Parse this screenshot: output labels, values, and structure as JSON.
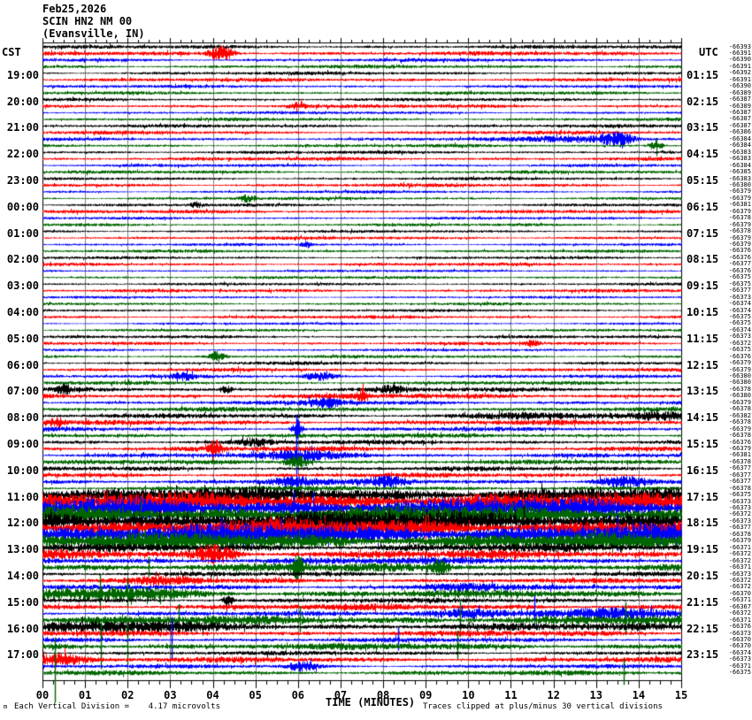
{
  "header": {
    "date": "Feb25,2026",
    "station": "SCIN HN2 NM 00",
    "location": "(Evansville, IN)"
  },
  "footer": {
    "unit_glyph": "m",
    "division_note": "Each Vertical Division =    4.17 microvolts",
    "clip_note": "Traces clipped at plus/minus 30 vertical divisions"
  },
  "chart_data": {
    "type": "line",
    "subtype": "helicorder-seismogram",
    "title": "Feb25,2026 SCIN HN2 NM 00 (Evansville, IN)",
    "xlabel": "TIME (MINUTES)",
    "x_range_minutes": [
      0,
      15
    ],
    "x_tick_labels": [
      "00",
      "01",
      "02",
      "03",
      "04",
      "05",
      "06",
      "07",
      "08",
      "09",
      "10",
      "11",
      "12",
      "13",
      "14",
      "15"
    ],
    "minor_ticks_per_minute": 4,
    "rows": 96,
    "row_duration_minutes": 15,
    "grid_color": "#808080",
    "trace_colors_cycle": [
      "#000000",
      "#ff0000",
      "#0000ff",
      "#006600"
    ],
    "left_axis": {
      "label": "CST",
      "hours": [
        "19:00",
        "20:00",
        "21:00",
        "22:00",
        "23:00",
        "00:00",
        "01:00",
        "02:00",
        "03:00",
        "04:00",
        "05:00",
        "06:00",
        "07:00",
        "08:00",
        "09:00",
        "10:00",
        "11:00",
        "12:00",
        "13:00",
        "14:00",
        "15:00",
        "16:00",
        "17:00"
      ]
    },
    "right_axis": {
      "label": "UTC",
      "hours": [
        "01:15",
        "02:15",
        "03:15",
        "04:15",
        "05:15",
        "06:15",
        "07:15",
        "08:15",
        "09:15",
        "10:15",
        "11:15",
        "12:15",
        "13:15",
        "14:15",
        "15:15",
        "16:15",
        "17:15",
        "18:15",
        "19:15",
        "20:15",
        "21:15",
        "22:15",
        "23:15"
      ]
    },
    "trace_right_values": [
      -66393,
      -66391,
      -66390,
      -66391,
      -66392,
      -66391,
      -66390,
      -66389,
      -66387,
      -66389,
      -66387,
      -66387,
      -66387,
      -66386,
      -66384,
      -66384,
      -66383,
      -66383,
      -66384,
      -66385,
      -66383,
      -66380,
      -66379,
      -66379,
      -66381,
      -66379,
      -66378,
      -66379,
      -66378,
      -66379,
      -66379,
      -66376,
      -66376,
      -66377,
      -66376,
      -66375,
      -66375,
      -66377,
      -66373,
      -66374,
      -66374,
      -66375,
      -66375,
      -66374,
      -66373,
      -66372,
      -66375,
      -66376,
      -66379,
      -66379,
      -66380,
      -66380,
      -66378,
      -66380,
      -66379,
      -66378,
      -66382,
      -66378,
      -66379,
      -66378,
      -66376,
      -66379,
      -66381,
      -66378,
      -66377,
      -66377,
      -66377,
      -66378,
      -66375,
      -66373,
      -66373,
      -66372,
      -66373,
      -66377,
      -66378,
      -66379,
      -66371,
      -66372,
      -66372,
      -66371,
      -66373,
      -66372,
      -66372,
      -66370,
      -66371,
      -66367,
      -66372,
      -66371,
      -66376,
      -66373,
      -66370,
      -66370,
      -66374,
      -66373,
      -66371,
      -66375
    ],
    "traces": [
      {
        "a": 1.3,
        "e": []
      },
      {
        "a": 1.5,
        "e": [
          [
            4.2,
            0.2,
            7,
            0
          ]
        ]
      },
      {
        "a": 1.3,
        "e": []
      },
      {
        "a": 1.3,
        "e": []
      },
      {
        "a": 1.2,
        "e": []
      },
      {
        "a": 1.4,
        "e": []
      },
      {
        "a": 1.1,
        "e": []
      },
      {
        "a": 1.2,
        "e": []
      },
      {
        "a": 1.2,
        "e": []
      },
      {
        "a": 1.4,
        "e": [
          [
            6.0,
            0.15,
            3,
            0
          ]
        ]
      },
      {
        "a": 1.1,
        "e": []
      },
      {
        "a": 1.2,
        "e": []
      },
      {
        "a": 1.2,
        "e": []
      },
      {
        "a": 1.3,
        "e": []
      },
      {
        "a": 1.2,
        "e": [
          [
            12.5,
            0.8,
            2.5,
            0
          ],
          [
            13.5,
            0.25,
            6,
            0
          ]
        ]
      },
      {
        "a": 1.2,
        "e": [
          [
            14.4,
            0.1,
            5,
            0
          ]
        ]
      },
      {
        "a": 1.2,
        "e": []
      },
      {
        "a": 1.3,
        "e": []
      },
      {
        "a": 1.1,
        "e": []
      },
      {
        "a": 1.2,
        "e": []
      },
      {
        "a": 1.1,
        "e": []
      },
      {
        "a": 1.3,
        "e": []
      },
      {
        "a": 1.0,
        "e": []
      },
      {
        "a": 1.1,
        "e": [
          [
            4.8,
            0.15,
            3,
            0
          ]
        ]
      },
      {
        "a": 1.1,
        "e": [
          [
            3.6,
            0.1,
            2.5,
            0
          ]
        ]
      },
      {
        "a": 1.3,
        "e": []
      },
      {
        "a": 1.0,
        "e": []
      },
      {
        "a": 1.1,
        "e": []
      },
      {
        "a": 1.0,
        "e": []
      },
      {
        "a": 1.2,
        "e": []
      },
      {
        "a": 1.0,
        "e": [
          [
            6.2,
            0.1,
            2.5,
            0
          ]
        ]
      },
      {
        "a": 1.1,
        "e": []
      },
      {
        "a": 1.0,
        "e": []
      },
      {
        "a": 1.2,
        "e": []
      },
      {
        "a": 0.9,
        "e": []
      },
      {
        "a": 1.1,
        "e": []
      },
      {
        "a": 1.0,
        "e": []
      },
      {
        "a": 1.2,
        "e": []
      },
      {
        "a": 0.9,
        "e": []
      },
      {
        "a": 1.0,
        "e": []
      },
      {
        "a": 1.0,
        "e": []
      },
      {
        "a": 1.2,
        "e": []
      },
      {
        "a": 0.9,
        "e": []
      },
      {
        "a": 1.0,
        "e": []
      },
      {
        "a": 1.1,
        "e": []
      },
      {
        "a": 1.2,
        "e": [
          [
            11.5,
            0.1,
            3,
            0
          ]
        ]
      },
      {
        "a": 1.0,
        "e": []
      },
      {
        "a": 1.2,
        "e": [
          [
            4.1,
            0.12,
            5,
            0
          ]
        ]
      },
      {
        "a": 1.2,
        "e": []
      },
      {
        "a": 1.3,
        "e": []
      },
      {
        "a": 1.2,
        "e": [
          [
            3.3,
            0.2,
            3,
            0
          ],
          [
            6.5,
            0.25,
            3.5,
            0
          ]
        ]
      },
      {
        "a": 1.3,
        "e": []
      },
      {
        "a": 1.6,
        "e": [
          [
            0.5,
            0.1,
            4,
            0
          ],
          [
            4.3,
            0.1,
            3,
            0
          ],
          [
            8.2,
            0.25,
            2.5,
            0
          ]
        ]
      },
      {
        "a": 1.9,
        "e": [
          [
            7.5,
            0.08,
            6,
            0
          ]
        ]
      },
      {
        "a": 1.5,
        "e": [
          [
            6.6,
            0.3,
            4,
            0
          ]
        ]
      },
      {
        "a": 1.6,
        "e": []
      },
      {
        "a": 1.6,
        "e": [
          [
            11.2,
            0.8,
            2.5,
            0
          ],
          [
            14.5,
            0.4,
            3.5,
            0
          ]
        ]
      },
      {
        "a": 1.7,
        "e": [
          [
            0.3,
            0.15,
            4,
            0
          ]
        ]
      },
      {
        "a": 1.5,
        "e": [
          [
            5.97,
            0.08,
            9,
            0
          ]
        ]
      },
      {
        "a": 1.6,
        "e": []
      },
      {
        "a": 1.6,
        "e": [
          [
            5.0,
            0.25,
            3,
            0
          ]
        ]
      },
      {
        "a": 1.8,
        "e": [
          [
            4.05,
            0.1,
            8,
            0
          ]
        ]
      },
      {
        "a": 1.5,
        "e": [
          [
            5.97,
            0.05,
            46,
            1
          ],
          [
            6.3,
            0.8,
            4,
            0
          ]
        ]
      },
      {
        "a": 1.6,
        "e": [
          [
            5.97,
            0.2,
            6,
            0
          ]
        ]
      },
      {
        "a": 1.6,
        "e": []
      },
      {
        "a": 1.7,
        "e": []
      },
      {
        "a": 1.8,
        "e": [
          [
            5.9,
            0.4,
            4,
            0
          ],
          [
            8.1,
            0.3,
            4,
            0
          ],
          [
            13.6,
            0.4,
            5,
            0
          ]
        ]
      },
      {
        "a": 1.7,
        "e": []
      },
      {
        "a": 5.5,
        "e": []
      },
      {
        "a": 6.5,
        "e": []
      },
      {
        "a": 7.0,
        "e": [
          [
            5.9,
            0.05,
            20,
            1
          ],
          [
            6.35,
            0.05,
            18,
            1
          ]
        ]
      },
      {
        "a": 6.5,
        "e": [
          [
            2.3,
            0.05,
            16,
            1
          ]
        ]
      },
      {
        "a": 7.5,
        "e": [
          [
            11.3,
            0.05,
            18,
            1
          ]
        ]
      },
      {
        "a": 6.5,
        "e": [
          [
            9.0,
            0.05,
            15,
            1
          ]
        ]
      },
      {
        "a": 7.5,
        "e": [
          [
            4.2,
            0.05,
            20,
            1
          ],
          [
            5.6,
            0.05,
            18,
            1
          ],
          [
            13.5,
            0.05,
            22,
            1
          ]
        ]
      },
      {
        "a": 6.0,
        "e": []
      },
      {
        "a": 2.8,
        "e": []
      },
      {
        "a": 3.0,
        "e": [
          [
            4.05,
            0.3,
            8,
            0
          ]
        ]
      },
      {
        "a": 2.4,
        "e": []
      },
      {
        "a": 3.0,
        "e": [
          [
            2.5,
            0.06,
            12,
            1
          ],
          [
            6.0,
            0.1,
            10,
            0
          ],
          [
            9.3,
            0.15,
            6,
            0
          ]
        ]
      },
      {
        "a": 1.6,
        "e": []
      },
      {
        "a": 1.8,
        "e": [
          [
            2.9,
            0.5,
            3,
            0
          ]
        ]
      },
      {
        "a": 1.7,
        "e": [
          [
            9.8,
            0.7,
            3,
            0
          ]
        ]
      },
      {
        "a": 2.6,
        "e": [
          [
            1.35,
            0.05,
            22,
            1
          ],
          [
            2.0,
            0.05,
            18,
            1
          ],
          [
            1.8,
            1.2,
            4,
            0
          ]
        ]
      },
      {
        "a": 1.7,
        "e": [
          [
            4.35,
            0.08,
            5,
            0
          ]
        ]
      },
      {
        "a": 2.2,
        "e": []
      },
      {
        "a": 1.7,
        "e": [
          [
            9.9,
            0.8,
            3,
            0
          ],
          [
            11.55,
            0.05,
            20,
            1
          ],
          [
            13.2,
            1.3,
            4,
            0
          ]
        ]
      },
      {
        "a": 3.2,
        "e": [
          [
            3.2,
            0.05,
            18,
            1
          ],
          [
            6.05,
            0.05,
            16,
            1
          ],
          [
            9.8,
            0.05,
            22,
            1
          ],
          [
            13.7,
            0.05,
            20,
            1
          ]
        ]
      },
      {
        "a": 2.6,
        "e": [
          [
            1.8,
            1.6,
            2.5,
            0
          ]
        ]
      },
      {
        "a": 2.0,
        "e": []
      },
      {
        "a": 1.6,
        "e": [
          [
            3.03,
            0.05,
            26,
            1
          ],
          [
            8.35,
            0.05,
            14,
            1
          ]
        ]
      },
      {
        "a": 2.4,
        "e": [
          [
            1.38,
            0.05,
            30,
            1
          ],
          [
            2.0,
            0.05,
            24,
            1
          ],
          [
            9.75,
            0.05,
            18,
            1
          ]
        ]
      },
      {
        "a": 1.5,
        "e": []
      },
      {
        "a": 1.9,
        "e": [
          [
            0.4,
            0.4,
            5,
            0
          ]
        ]
      },
      {
        "a": 1.4,
        "e": [
          [
            6.1,
            0.25,
            4,
            0
          ]
        ]
      },
      {
        "a": 1.7,
        "e": [
          [
            0.29,
            0.05,
            40,
            1
          ],
          [
            13.65,
            0.05,
            16,
            1
          ]
        ]
      }
    ]
  }
}
